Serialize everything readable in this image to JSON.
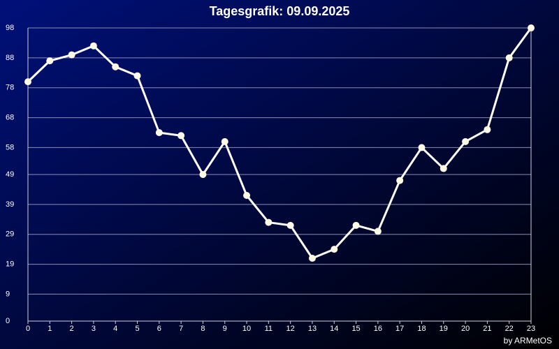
{
  "chart_data": {
    "type": "line",
    "title": "Tagesgrafik: 09.09.2025",
    "credit": "by ARMetOS",
    "x": [
      0,
      1,
      2,
      3,
      4,
      5,
      6,
      7,
      8,
      9,
      10,
      11,
      12,
      13,
      14,
      15,
      16,
      17,
      18,
      19,
      20,
      21,
      22,
      23
    ],
    "series": [
      {
        "color": "#ffffff",
        "values": [
          80,
          87,
          89,
          92,
          85,
          82,
          63,
          62,
          49,
          60,
          42,
          33,
          32,
          21,
          24,
          32,
          30,
          47,
          58,
          51,
          60,
          64,
          88,
          98
        ]
      }
    ],
    "xlim": [
      0,
      23
    ],
    "xticks": [
      0,
      1,
      2,
      3,
      4,
      5,
      6,
      7,
      8,
      9,
      10,
      11,
      12,
      13,
      14,
      15,
      16,
      17,
      18,
      19,
      20,
      21,
      22,
      23
    ],
    "ylim": [
      0,
      98
    ],
    "yticks": [
      0,
      9,
      19,
      29,
      39,
      49,
      58,
      68,
      78,
      88,
      98
    ],
    "grid": true
  }
}
